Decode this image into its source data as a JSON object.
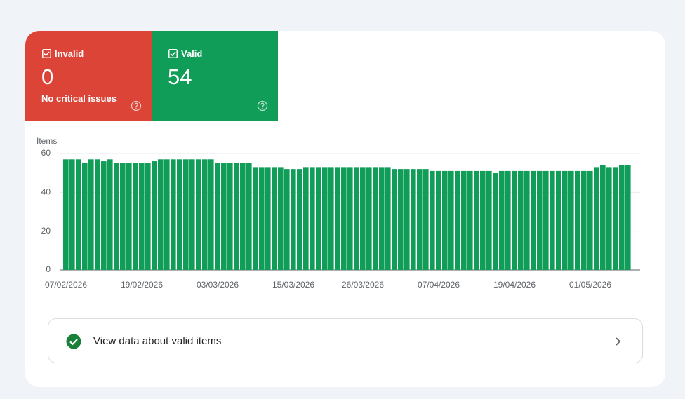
{
  "summary": {
    "invalid": {
      "label": "Invalid",
      "count": 0,
      "note": "No critical issues"
    },
    "valid": {
      "label": "Valid",
      "count": 54
    }
  },
  "chart_data": {
    "type": "bar",
    "ylabel": "Items",
    "color": "#0f9d58",
    "ylim": [
      0,
      60
    ],
    "yticks": [
      0,
      20,
      40,
      60
    ],
    "grid": true,
    "categories": [
      "07/02/2026",
      null,
      null,
      null,
      null,
      null,
      null,
      null,
      null,
      null,
      null,
      null,
      "19/02/2026",
      null,
      null,
      null,
      null,
      null,
      null,
      null,
      null,
      null,
      null,
      null,
      "03/03/2026",
      null,
      null,
      null,
      null,
      null,
      null,
      null,
      null,
      null,
      null,
      null,
      "15/03/2026",
      null,
      null,
      null,
      null,
      null,
      null,
      null,
      null,
      null,
      null,
      "26/03/2026",
      null,
      null,
      null,
      null,
      null,
      null,
      null,
      null,
      null,
      null,
      null,
      "07/04/2026",
      null,
      null,
      null,
      null,
      null,
      null,
      null,
      null,
      null,
      null,
      null,
      "19/04/2026",
      null,
      null,
      null,
      null,
      null,
      null,
      null,
      null,
      null,
      null,
      null,
      "01/05/2026",
      null,
      null,
      null,
      null,
      null,
      null
    ],
    "values": [
      57,
      57,
      57,
      55,
      57,
      57,
      56,
      57,
      55,
      55,
      55,
      55,
      55,
      55,
      56,
      57,
      57,
      57,
      57,
      57,
      57,
      57,
      57,
      57,
      55,
      55,
      55,
      55,
      55,
      55,
      53,
      53,
      53,
      53,
      53,
      52,
      52,
      52,
      53,
      53,
      53,
      53,
      53,
      53,
      53,
      53,
      53,
      53,
      53,
      53,
      53,
      53,
      52,
      52,
      52,
      52,
      52,
      52,
      51,
      51,
      51,
      51,
      51,
      51,
      51,
      51,
      51,
      51,
      50,
      51,
      51,
      51,
      51,
      51,
      51,
      51,
      51,
      51,
      51,
      51,
      51,
      51,
      51,
      51,
      53,
      54,
      53,
      53,
      54,
      54
    ]
  },
  "link": {
    "label": "View data about valid items"
  }
}
